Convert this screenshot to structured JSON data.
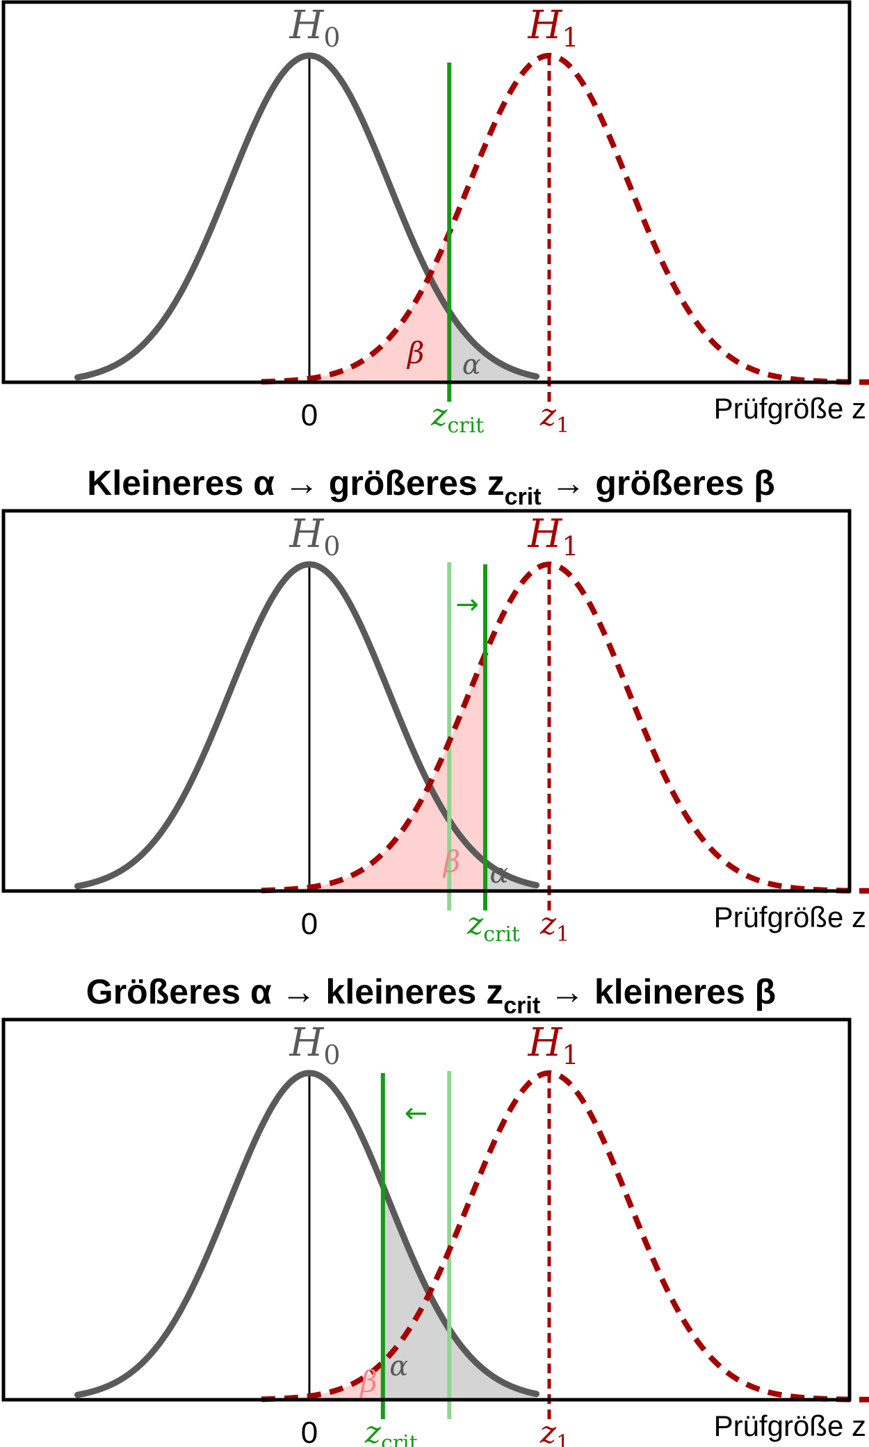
{
  "colors": {
    "h0": "#5a5a5a",
    "h1": "#a40000",
    "zcrit": "#159b15",
    "zcrit_old": "#8fd68f",
    "beta_fill": "#ffd2d2",
    "alpha_fill": "#d4d4d4",
    "frame": "#000000"
  },
  "labels": {
    "h0": "H",
    "h0_sub": "0",
    "h1": "H",
    "h1_sub": "1",
    "zero": "0",
    "zcrit": "z",
    "zcrit_sub": "crit",
    "z1": "z",
    "z1_sub": "1",
    "alpha": "α",
    "beta": "β",
    "axis": "Prüfgröße z",
    "arrow_right": "→",
    "arrow_left": "←"
  },
  "titles": [
    {
      "pre": "Kleineres α → größeres z",
      "sub": "crit",
      "post": " → größeres β"
    },
    {
      "pre": "Größeres α → kleineres z",
      "sub": "crit",
      "post": " → kleineres β"
    }
  ],
  "panels": [
    {
      "name": "baseline",
      "z1": 3,
      "zcrit": 1.75,
      "zcrit_old": null,
      "arrow": null
    },
    {
      "name": "smaller-alpha",
      "z1": 3,
      "zcrit": 2.2,
      "zcrit_old": 1.75,
      "arrow": "right"
    },
    {
      "name": "larger-alpha",
      "z1": 3,
      "zcrit": 0.92,
      "zcrit_old": 1.75,
      "arrow": "left"
    }
  ]
}
